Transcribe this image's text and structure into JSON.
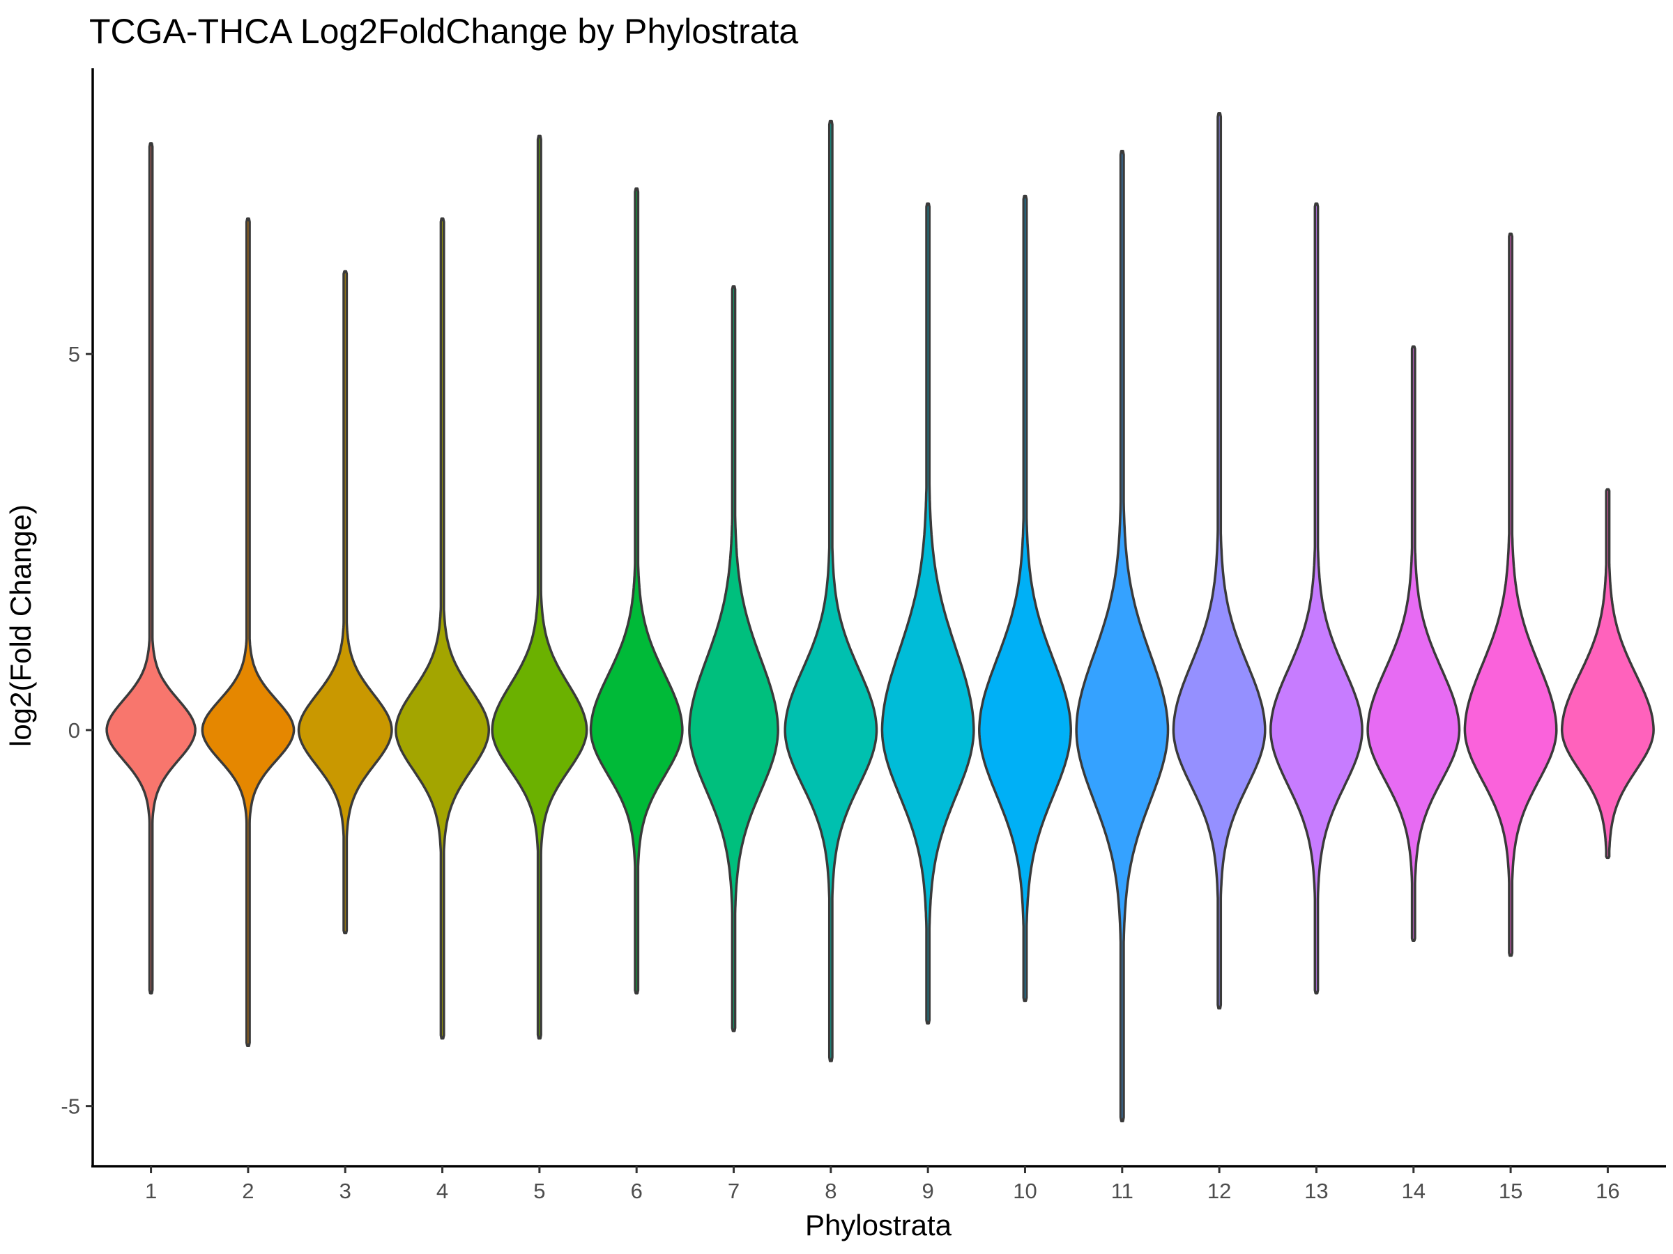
{
  "chart_data": {
    "type": "violin",
    "title": "TCGA-THCA Log2FoldChange by Phylostrata",
    "xlabel": "Phylostrata",
    "ylabel": "log2(Fold Change)",
    "ylim": [
      -5.8,
      8.8
    ],
    "yticks": [
      "-5",
      "0",
      "5"
    ],
    "ytick_values": [
      -5,
      0,
      5
    ],
    "grid": false,
    "legend": "none",
    "categories": [
      "1",
      "2",
      "3",
      "4",
      "5",
      "6",
      "7",
      "8",
      "9",
      "10",
      "11",
      "12",
      "13",
      "14",
      "15",
      "16"
    ],
    "series": [
      {
        "category": "1",
        "color": "#F8766D",
        "max": 7.8,
        "min": -3.5,
        "q_upper": 0.6,
        "q_lower": -0.6,
        "mode_halfwidth": 0.6
      },
      {
        "category": "2",
        "color": "#E58700",
        "max": 6.8,
        "min": -4.2,
        "q_upper": 0.6,
        "q_lower": -0.6,
        "mode_halfwidth": 0.62
      },
      {
        "category": "3",
        "color": "#C99800",
        "max": 6.1,
        "min": -2.7,
        "q_upper": 0.7,
        "q_lower": -0.7,
        "mode_halfwidth": 0.63
      },
      {
        "category": "4",
        "color": "#A3A500",
        "max": 6.8,
        "min": -4.1,
        "q_upper": 0.8,
        "q_lower": -0.8,
        "mode_halfwidth": 0.63
      },
      {
        "category": "5",
        "color": "#6BB100",
        "max": 7.9,
        "min": -4.1,
        "q_upper": 0.9,
        "q_lower": -0.8,
        "mode_halfwidth": 0.64
      },
      {
        "category": "6",
        "color": "#00BA38",
        "max": 7.2,
        "min": -3.5,
        "q_upper": 1.1,
        "q_lower": -0.9,
        "mode_halfwidth": 0.62
      },
      {
        "category": "7",
        "color": "#00BF7D",
        "max": 5.9,
        "min": -4.0,
        "q_upper": 1.4,
        "q_lower": -1.2,
        "mode_halfwidth": 0.6
      },
      {
        "category": "8",
        "color": "#00C0AF",
        "max": 8.1,
        "min": -4.4,
        "q_upper": 1.2,
        "q_lower": -1.1,
        "mode_halfwidth": 0.62
      },
      {
        "category": "9",
        "color": "#00BCD8",
        "max": 7.0,
        "min": -3.9,
        "q_upper": 1.6,
        "q_lower": -1.3,
        "mode_halfwidth": 0.62
      },
      {
        "category": "10",
        "color": "#00B0F6",
        "max": 7.1,
        "min": -3.6,
        "q_upper": 1.4,
        "q_lower": -1.3,
        "mode_halfwidth": 0.62
      },
      {
        "category": "11",
        "color": "#35A2FF",
        "max": 7.7,
        "min": -5.2,
        "q_upper": 1.5,
        "q_lower": -1.4,
        "mode_halfwidth": 0.62
      },
      {
        "category": "12",
        "color": "#9590FF",
        "max": 8.2,
        "min": -3.7,
        "q_upper": 1.3,
        "q_lower": -1.1,
        "mode_halfwidth": 0.62
      },
      {
        "category": "13",
        "color": "#C77CFF",
        "max": 7.0,
        "min": -3.5,
        "q_upper": 1.2,
        "q_lower": -1.1,
        "mode_halfwidth": 0.62
      },
      {
        "category": "14",
        "color": "#E76BF3",
        "max": 5.1,
        "min": -2.8,
        "q_upper": 1.2,
        "q_lower": -1.0,
        "mode_halfwidth": 0.62
      },
      {
        "category": "15",
        "color": "#FA62DB",
        "max": 6.6,
        "min": -3.0,
        "q_upper": 1.3,
        "q_lower": -1.0,
        "mode_halfwidth": 0.62
      },
      {
        "category": "16",
        "color": "#FF62BC",
        "max": 3.2,
        "min": -1.7,
        "q_upper": 1.1,
        "q_lower": -0.8,
        "mode_halfwidth": 0.62
      }
    ]
  }
}
